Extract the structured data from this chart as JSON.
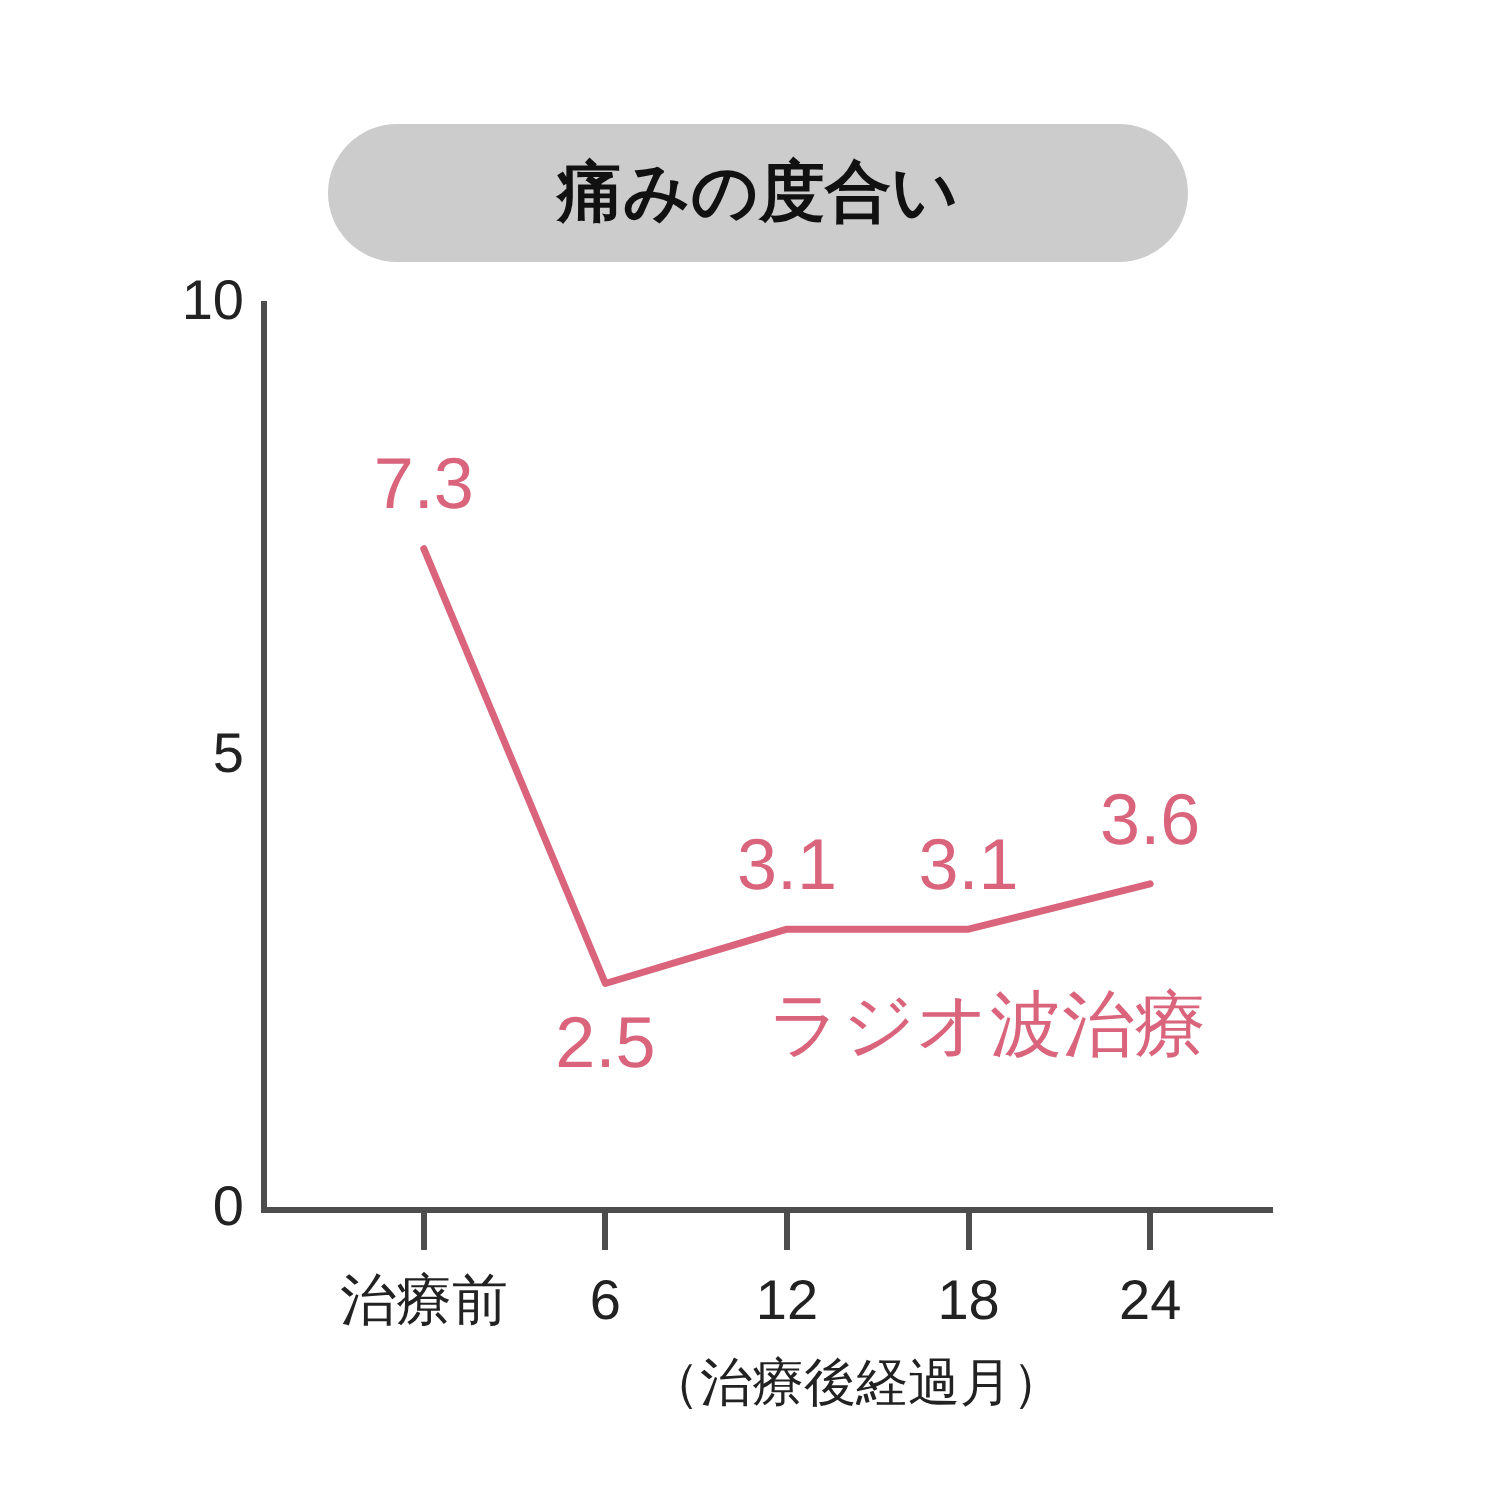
{
  "chart_data": {
    "type": "line",
    "title": "痛みの度合い",
    "xlabel": "（治療後経過月）",
    "categories": [
      "治療前",
      "6",
      "12",
      "18",
      "24"
    ],
    "series": [
      {
        "name": "ラジオ波治療",
        "color": "#d9647c",
        "values": [
          7.3,
          2.5,
          3.1,
          3.1,
          3.6
        ]
      }
    ],
    "ylim": [
      0,
      10
    ],
    "yticks": [
      0,
      5,
      10
    ],
    "data_labels": true,
    "marker": "none"
  }
}
